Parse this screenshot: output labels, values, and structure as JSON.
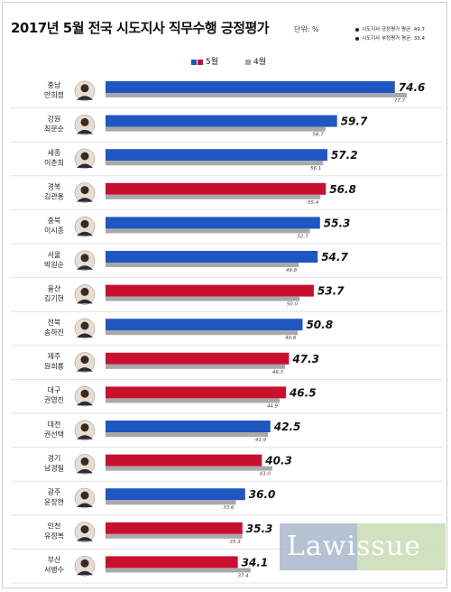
{
  "header": {
    "title": "2017년 5월 전국 시도지사 직무수행 긍정평가",
    "unit": "단위: %",
    "avg_pos": "시도지사 긍정평가 평균: 49.7",
    "avg_neg": "시도지사 부정평가 평균: 33.4"
  },
  "legend": {
    "may": "5월",
    "april": "4월"
  },
  "watermark": {
    "text": "Lawissue"
  },
  "colors": {
    "blue": "#1f56c2",
    "red": "#c8102e",
    "gray": "#a9a9a9"
  },
  "chart_data": {
    "type": "bar",
    "orientation": "horizontal",
    "categories": [
      {
        "region": "충남",
        "name": "안희정",
        "color": "blue"
      },
      {
        "region": "강원",
        "name": "최문순",
        "color": "blue"
      },
      {
        "region": "세종",
        "name": "이춘희",
        "color": "blue"
      },
      {
        "region": "경북",
        "name": "김관용",
        "color": "red"
      },
      {
        "region": "충북",
        "name": "이시종",
        "color": "blue"
      },
      {
        "region": "서울",
        "name": "박원순",
        "color": "blue"
      },
      {
        "region": "울산",
        "name": "김기현",
        "color": "red"
      },
      {
        "region": "전북",
        "name": "송하진",
        "color": "blue"
      },
      {
        "region": "제주",
        "name": "원희룡",
        "color": "red"
      },
      {
        "region": "대구",
        "name": "권영진",
        "color": "red"
      },
      {
        "region": "대전",
        "name": "권선택",
        "color": "blue"
      },
      {
        "region": "경기",
        "name": "남경필",
        "color": "red"
      },
      {
        "region": "광주",
        "name": "윤장현",
        "color": "blue"
      },
      {
        "region": "인천",
        "name": "유정복",
        "color": "red"
      },
      {
        "region": "부산",
        "name": "서병수",
        "color": "red"
      }
    ],
    "series": [
      {
        "name": "5월",
        "values": [
          74.6,
          59.7,
          57.2,
          56.8,
          55.3,
          54.7,
          53.7,
          50.8,
          47.3,
          46.5,
          42.5,
          40.3,
          36.0,
          35.3,
          34.1
        ]
      },
      {
        "name": "4월",
        "values": [
          77.7,
          56.7,
          56.1,
          55.4,
          52.7,
          49.8,
          50.0,
          49.6,
          46.3,
          44.9,
          41.9,
          43.0,
          33.6,
          35.3,
          37.4
        ]
      }
    ],
    "labels_may": [
      "74.6",
      "59.7",
      "57.2",
      "56.8",
      "55.3",
      "54.7",
      "53.7",
      "50.8",
      "47.3",
      "46.5",
      "42.5",
      "40.3",
      "36.0",
      "35.3",
      "34.1"
    ],
    "labels_april": [
      "77.7",
      "56.7",
      "56.1",
      "55.4",
      "52.7",
      "49.8",
      "50.0",
      "49.6",
      "46.3",
      "44.9",
      "41.9",
      "43.0",
      "33.6",
      "35.3",
      "37.4"
    ]
  }
}
